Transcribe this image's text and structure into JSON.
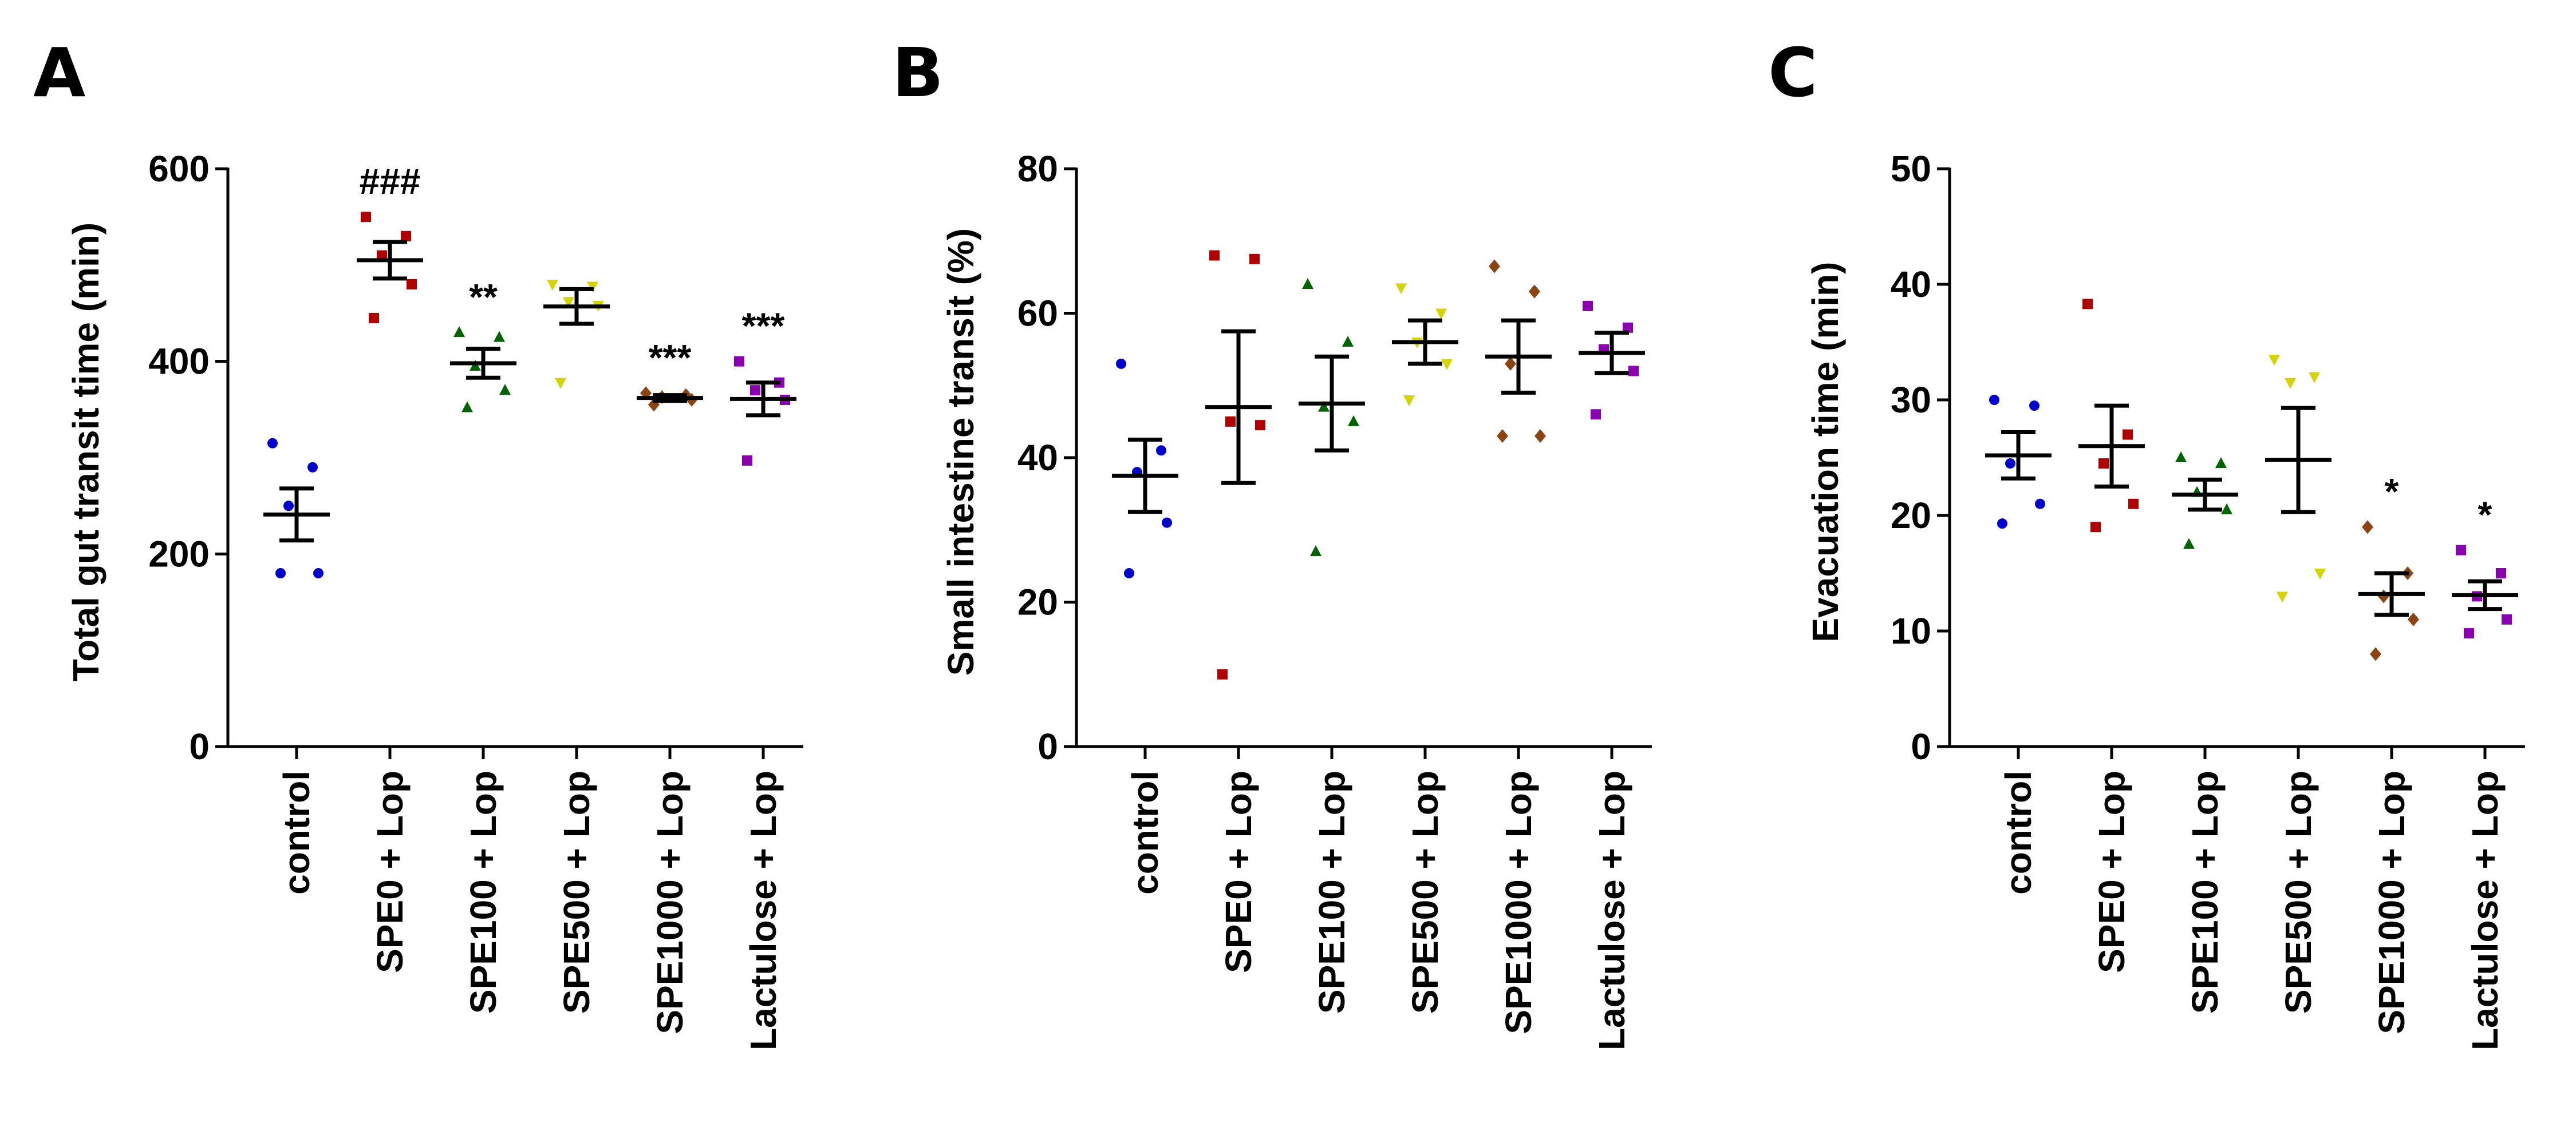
{
  "chart_data": [
    {
      "type": "scatter",
      "panel": "A",
      "ylabel": "Total gut transit time (min)",
      "ylim": [
        0,
        600
      ],
      "yticks": [
        0,
        200,
        400,
        600
      ],
      "categories": [
        "control",
        "SPE0 + Lop",
        "SPE100 + Lop",
        "SPE500 + Lop",
        "SPE1000 + Lop",
        "Lactulose + Lop"
      ],
      "colors": [
        "#0000cc",
        "#b00000",
        "#006400",
        "#d4d400",
        "#8b4513",
        "#8a00b0"
      ],
      "markers": [
        "circle",
        "square",
        "triangle-up",
        "triangle-down",
        "diamond",
        "square"
      ],
      "points": [
        [
          315,
          290,
          250,
          180,
          180
        ],
        [
          550,
          530,
          510,
          480,
          445
        ],
        [
          430,
          425,
          395,
          370,
          352
        ],
        [
          480,
          478,
          462,
          458,
          378
        ],
        [
          367,
          365,
          363,
          360,
          355
        ],
        [
          400,
          378,
          370,
          360,
          297
        ]
      ],
      "mean": [
        241,
        505,
        398,
        457,
        362,
        361
      ],
      "sem": [
        27,
        19,
        15,
        18,
        3,
        17
      ],
      "annotations": [
        "",
        "###",
        "**",
        "",
        "***",
        "***"
      ]
    },
    {
      "type": "scatter",
      "panel": "B",
      "ylabel": "Small intestine transit (%)",
      "ylim": [
        0,
        80
      ],
      "yticks": [
        0,
        20,
        40,
        60,
        80
      ],
      "categories": [
        "control",
        "SPE0 + Lop",
        "SPE100 + Lop",
        "SPE500 + Lop",
        "SPE1000 + Lop",
        "Lactulose + Lop"
      ],
      "colors": [
        "#0000cc",
        "#b00000",
        "#006400",
        "#d4d400",
        "#8b4513",
        "#8a00b0"
      ],
      "markers": [
        "circle",
        "square",
        "triangle-up",
        "triangle-down",
        "diamond",
        "square"
      ],
      "points": [
        [
          53,
          41,
          38,
          31,
          24
        ],
        [
          68,
          67.5,
          45,
          44.5,
          10
        ],
        [
          64,
          56,
          47,
          45,
          27
        ],
        [
          63.5,
          60,
          56,
          53,
          48
        ],
        [
          66.5,
          63,
          53,
          43,
          43
        ],
        [
          61,
          58,
          55,
          52,
          46
        ]
      ],
      "mean": [
        37.5,
        47,
        47.5,
        56,
        54,
        54.5
      ],
      "sem": [
        5,
        10.5,
        6.5,
        3,
        5,
        2.8
      ],
      "annotations": [
        "",
        "",
        "",
        "",
        "",
        ""
      ]
    },
    {
      "type": "scatter",
      "panel": "C",
      "ylabel": "Evacuation time (min)",
      "ylim": [
        0,
        50
      ],
      "yticks": [
        0,
        10,
        20,
        30,
        40,
        50
      ],
      "categories": [
        "control",
        "SPE0 + Lop",
        "SPE100 + Lop",
        "SPE500 + Lop",
        "SPE1000 + Lop",
        "Lactulose + Lop"
      ],
      "colors": [
        "#0000cc",
        "#b00000",
        "#006400",
        "#d4d400",
        "#8b4513",
        "#8a00b0"
      ],
      "markers": [
        "circle",
        "square",
        "triangle-up",
        "triangle-down",
        "diamond",
        "square"
      ],
      "points": [
        [
          30,
          29.5,
          24.5,
          21,
          19.3
        ],
        [
          38.3,
          27,
          24.5,
          21,
          19
        ],
        [
          25,
          24.5,
          22,
          20.5,
          17.5
        ],
        [
          33.5,
          32,
          31.5,
          15,
          13
        ],
        [
          19,
          15,
          13,
          11,
          8
        ],
        [
          17,
          15,
          13,
          11,
          9.8
        ]
      ],
      "mean": [
        25.2,
        26,
        21.8,
        24.8,
        13.2,
        13.1
      ],
      "sem": [
        2,
        3.5,
        1.3,
        4.5,
        1.8,
        1.2
      ],
      "annotations": [
        "",
        "",
        "",
        "",
        "*",
        "*"
      ]
    }
  ]
}
